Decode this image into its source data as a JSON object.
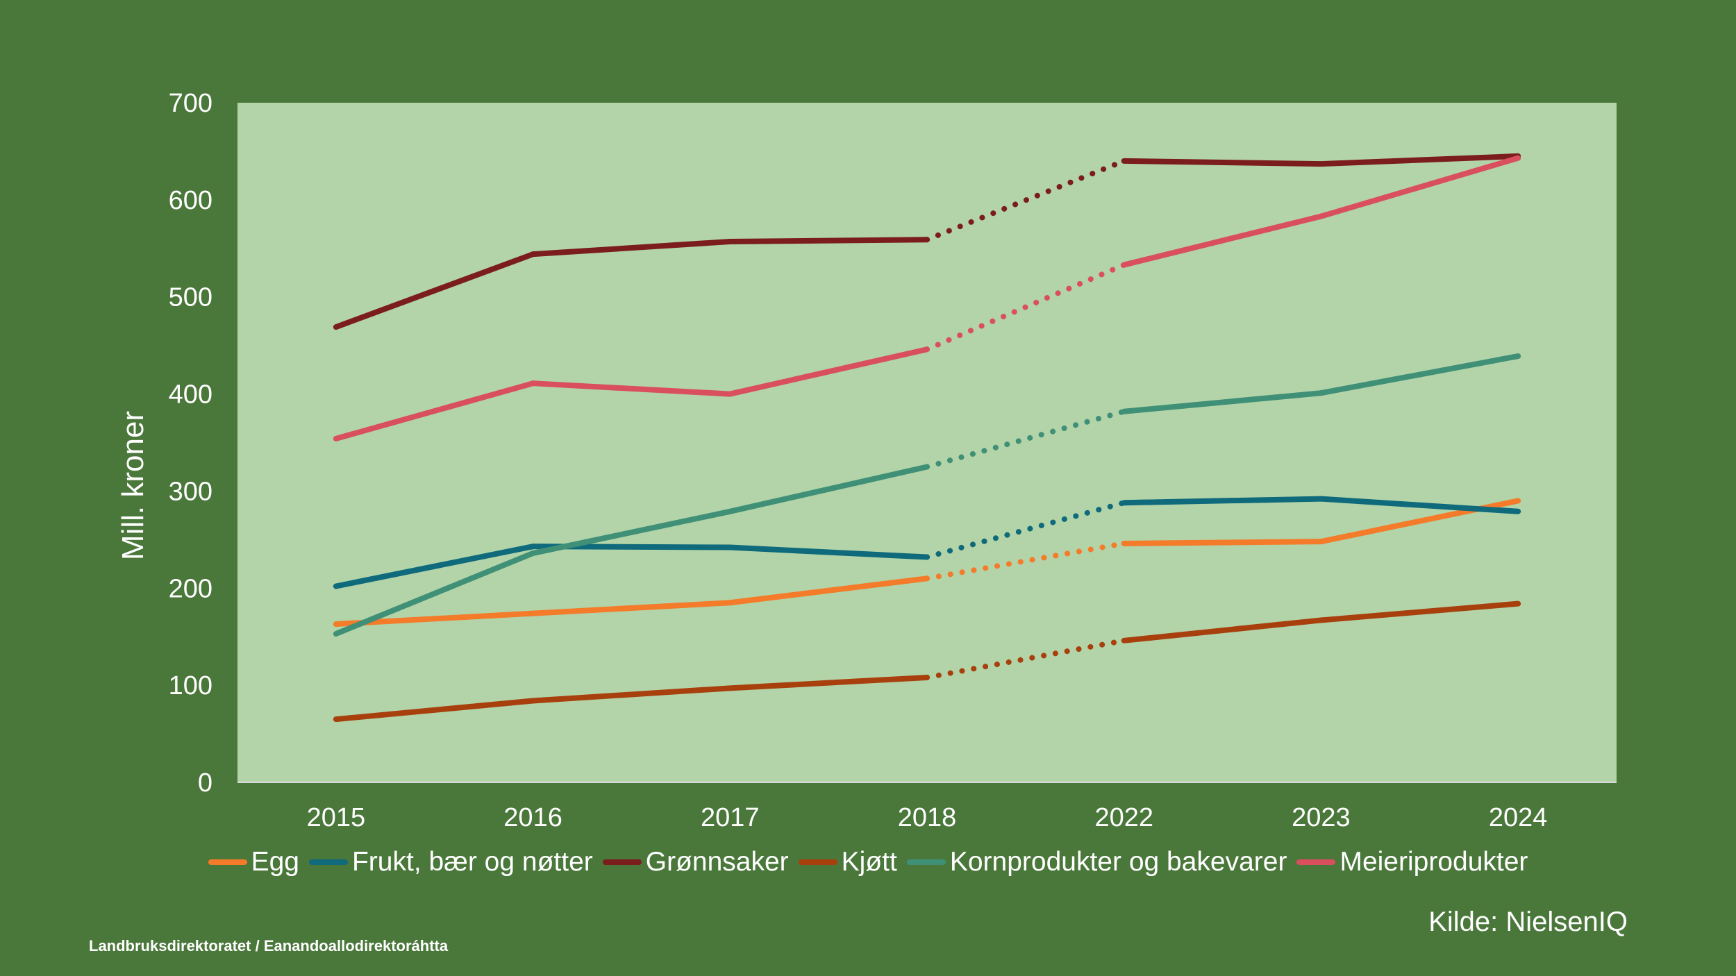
{
  "chart_data": {
    "type": "line",
    "ylabel": "Mill. kroner",
    "ylim": [
      0,
      700
    ],
    "yticks": [
      "0",
      "100",
      "200",
      "300",
      "400",
      "500",
      "600",
      "700"
    ],
    "categories": [
      "2015",
      "2016",
      "2017",
      "2018",
      "2022",
      "2023",
      "2024"
    ],
    "dotted_segment": [
      "2018",
      "2022"
    ],
    "background": "#4a773a",
    "plot_background": "#b2d4a8",
    "legend_position": "bottom",
    "grid": false,
    "series": [
      {
        "name": "Egg",
        "color": "#f47b2a",
        "values": [
          163,
          174,
          185,
          210,
          246,
          248,
          290
        ]
      },
      {
        "name": "Frukt, bær og nøtter",
        "color": "#0f6a7c",
        "values": [
          202,
          243,
          242,
          232,
          288,
          292,
          279
        ]
      },
      {
        "name": "Grønnsaker",
        "color": "#7b1d1d",
        "values": [
          469,
          544,
          557,
          559,
          640,
          637,
          645
        ]
      },
      {
        "name": "Kjøtt",
        "color": "#a8400e",
        "values": [
          65,
          84,
          97,
          108,
          146,
          167,
          184
        ]
      },
      {
        "name": "Kornprodukter og bakevarer",
        "color": "#3f9077",
        "values": [
          153,
          236,
          279,
          325,
          382,
          401,
          439
        ]
      },
      {
        "name": "Meieriprodukter",
        "color": "#d94f5e",
        "values": [
          354,
          411,
          400,
          446,
          533,
          583,
          643
        ]
      }
    ]
  },
  "source": "Kilde: NielsenIQ",
  "footer": "Landbruksdirektoratet / Eanandoallodirektoráhtta"
}
